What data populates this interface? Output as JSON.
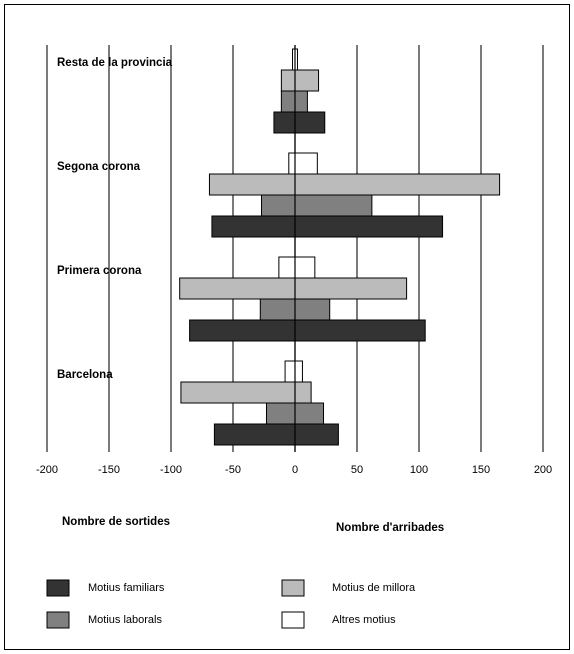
{
  "chart_data": {
    "type": "bar",
    "orientation": "horizontal",
    "categories": [
      "Resta de la provincia",
      "Segona corona",
      "Primera corona",
      "Barcelona"
    ],
    "series": [
      {
        "name": "Motius familiars",
        "color": "#333333",
        "negative_values": [
          -17,
          -67,
          -85,
          -65
        ],
        "values": [
          24,
          119,
          105,
          35
        ]
      },
      {
        "name": "Motius laborals",
        "color": "#808080",
        "negative_values": [
          -11,
          -27,
          -28,
          -23
        ],
        "values": [
          10,
          62,
          28,
          23
        ]
      },
      {
        "name": "Motius de millora",
        "color": "#bbbbbb",
        "negative_values": [
          -11,
          -69,
          -93,
          -92
        ],
        "values": [
          19,
          165,
          90,
          13
        ]
      },
      {
        "name": "Altres motius",
        "color": "#ffffff",
        "negative_values": [
          -2,
          -5,
          -13,
          -8
        ],
        "values": [
          2,
          18,
          16,
          6
        ]
      }
    ],
    "xlim": [
      -200,
      200
    ],
    "xticks": [
      -200,
      -150,
      -100,
      -50,
      0,
      50,
      100,
      150,
      200
    ],
    "xlabel_negative": "Nombre de sortides",
    "xlabel_positive": "Nombre d'arribades",
    "grid": true
  }
}
